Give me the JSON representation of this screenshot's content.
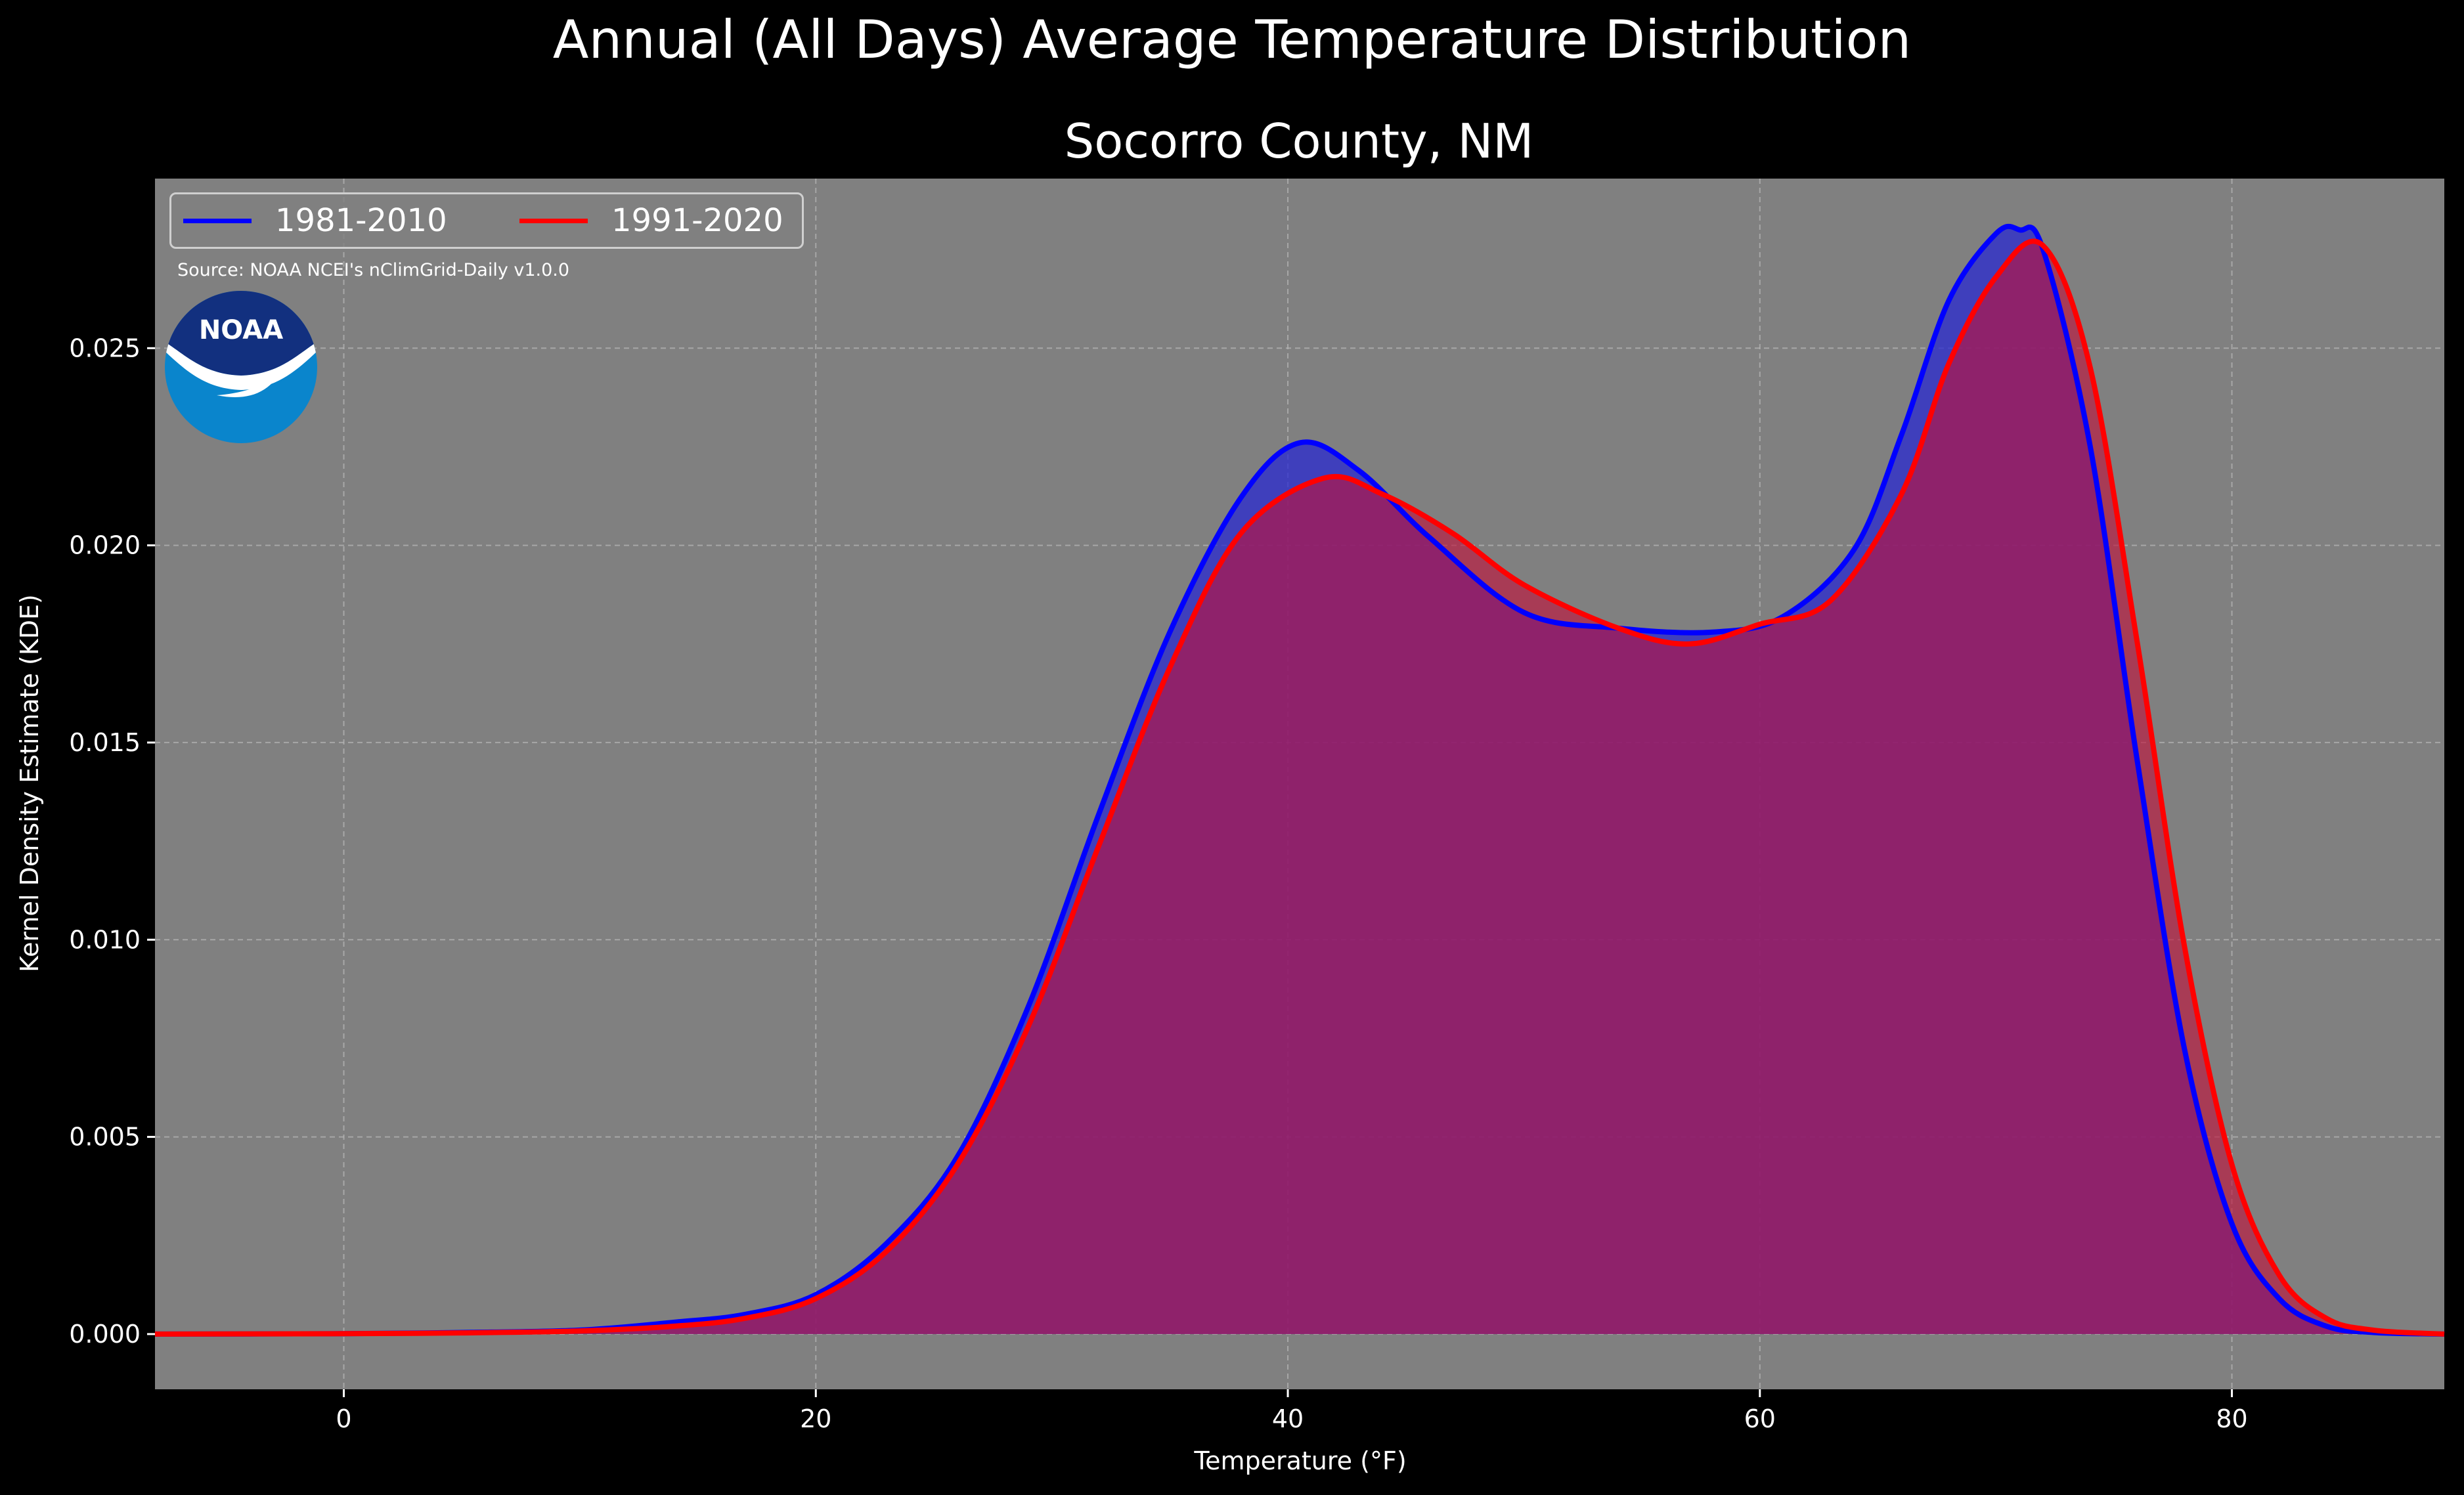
{
  "suptitle": "Annual (All Days) Average Temperature Distribution",
  "source_text": "Source: NOAA NCEI's nClimGrid-Daily v1.0.0",
  "logo_text": "NOAA",
  "colors": {
    "background": "#000000",
    "plot_bg": "#808080",
    "series_1981_2010": "#0000ff",
    "series_1991_2020": "#ff0000",
    "overlap_fill": "#9e1f5a"
  },
  "chart_data": {
    "type": "area",
    "title": "Socorro County, NM",
    "xlabel": "Temperature (°F)",
    "ylabel": "Kernel Density Estimate (KDE)",
    "xlim": [
      -8,
      89
    ],
    "ylim": [
      -0.0014,
      0.0293
    ],
    "xticks": [
      0,
      20,
      40,
      60,
      80
    ],
    "xtick_labels": [
      "0",
      "20",
      "40",
      "60",
      "80"
    ],
    "yticks": [
      0.0,
      0.005,
      0.01,
      0.015,
      0.02,
      0.025
    ],
    "ytick_labels": [
      "0.000",
      "0.005",
      "0.010",
      "0.015",
      "0.020",
      "0.025"
    ],
    "grid": true,
    "legend_position": "top-left",
    "series": [
      {
        "name": "1981-2010",
        "color": "#0000ff",
        "x": [
          -8,
          0,
          5,
          10,
          14,
          17,
          20,
          23,
          26,
          29,
          32,
          35,
          38,
          40.5,
          43,
          46,
          50,
          54,
          58,
          61,
          64,
          66,
          68,
          70,
          71,
          72,
          74,
          76,
          78,
          80,
          82,
          84,
          86,
          89
        ],
        "y": [
          0.0,
          1e-05,
          4e-05,
          0.0001,
          0.0003,
          0.0005,
          0.001,
          0.0023,
          0.0045,
          0.0083,
          0.0132,
          0.0178,
          0.0212,
          0.0226,
          0.0219,
          0.0202,
          0.0183,
          0.0179,
          0.0178,
          0.0182,
          0.0199,
          0.0228,
          0.0262,
          0.0279,
          0.028,
          0.0275,
          0.0225,
          0.0145,
          0.0072,
          0.0028,
          0.0009,
          0.0002,
          4e-05,
          0.0
        ]
      },
      {
        "name": "1991-2020",
        "color": "#ff0000",
        "x": [
          -8,
          0,
          5,
          10,
          14,
          17,
          20,
          23,
          26,
          29,
          32,
          35,
          38,
          41.5,
          44,
          47,
          50,
          54,
          57,
          60,
          63,
          66,
          68,
          70,
          72,
          74,
          76,
          78,
          80,
          82,
          84,
          86,
          89
        ],
        "y": [
          0.0,
          1e-05,
          3e-05,
          8e-05,
          0.0002,
          0.0004,
          0.0009,
          0.0021,
          0.0043,
          0.0078,
          0.0124,
          0.0169,
          0.0203,
          0.0217,
          0.0213,
          0.0203,
          0.019,
          0.0179,
          0.0175,
          0.018,
          0.0186,
          0.0213,
          0.0246,
          0.0268,
          0.0276,
          0.0245,
          0.0175,
          0.0098,
          0.0043,
          0.0015,
          0.0004,
          0.0001,
          0.0
        ]
      }
    ]
  }
}
